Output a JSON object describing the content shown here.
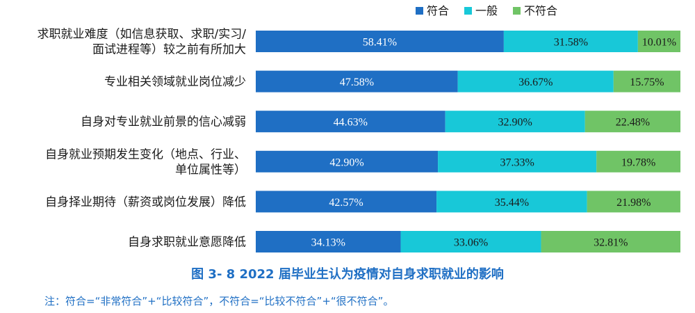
{
  "chart_data": {
    "type": "bar",
    "orientation": "horizontal",
    "stacked": true,
    "xlim": [
      0,
      100
    ],
    "unit": "%",
    "grid": false,
    "legend_position": "top-right",
    "categories": [
      [
        "求职就业难度（如信息获取、求职/实习/",
        "面试进程等）较之前有所加大"
      ],
      [
        "专业相关领域就业岗位减少"
      ],
      [
        "自身对专业就业前景的信心减弱"
      ],
      [
        "自身就业预期发生变化（地点、行业、",
        "单位属性等）"
      ],
      [
        "自身择业期待（薪资或岗位发展）降低"
      ],
      [
        "自身求职就业意愿降低"
      ]
    ],
    "series": [
      {
        "name": "符合",
        "color": "#1f6fc4",
        "label_color": "#ffffff",
        "values": [
          58.41,
          47.58,
          44.63,
          42.9,
          42.57,
          34.13
        ],
        "labels": [
          "58.41%",
          "47.58%",
          "44.63%",
          "42.90%",
          "42.57%",
          "34.13%"
        ]
      },
      {
        "name": "一般",
        "color": "#18c8d8",
        "label_color": "#1a1a1a",
        "values": [
          31.58,
          36.67,
          32.9,
          37.33,
          35.44,
          33.06
        ],
        "labels": [
          "31.58%",
          "36.67%",
          "32.90%",
          "37.33%",
          "35.44%",
          "33.06%"
        ]
      },
      {
        "name": "不符合",
        "color": "#70c466",
        "label_color": "#1a1a1a",
        "values": [
          10.01,
          15.75,
          22.48,
          19.78,
          21.98,
          32.81
        ],
        "labels": [
          "10.01%",
          "15.75%",
          "22.48%",
          "19.78%",
          "21.98%",
          "32.81%"
        ]
      }
    ]
  },
  "figure": {
    "title": "图 3- 8    2022 届毕业生认为疫情对自身求职就业的影响",
    "note": "注：符合=“非常符合”+“比较符合”，不符合=“比较不符合”+“很不符合”。"
  }
}
